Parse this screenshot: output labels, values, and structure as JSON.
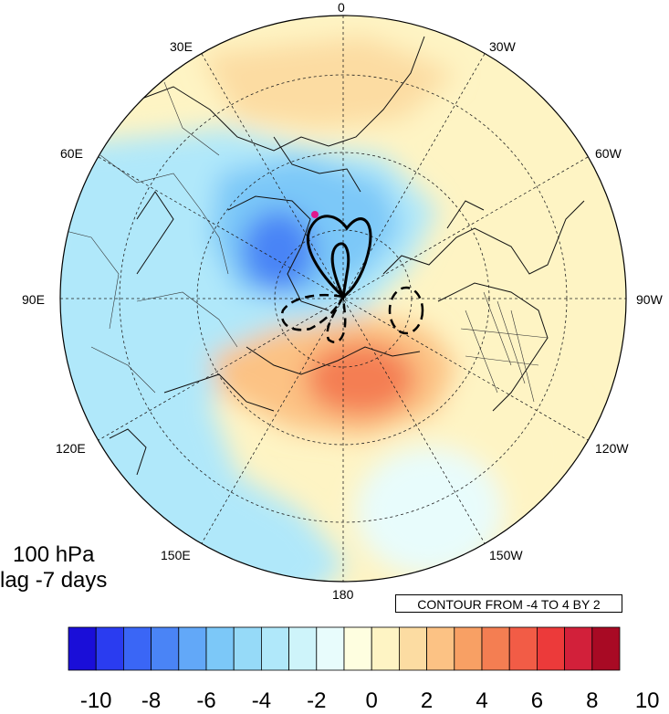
{
  "map": {
    "projection": "north-polar-stereographic",
    "longitude_labels": [
      "0",
      "30W",
      "60W",
      "90W",
      "120W",
      "150W",
      "180",
      "150E",
      "120E",
      "90E",
      "60E",
      "30E"
    ],
    "shading_field": "temperature anomaly",
    "contour_overlay": "black line contours, dashed negative",
    "marker_color": "#e0188c"
  },
  "caption": {
    "level": "100 hPa",
    "lag": "lag -7 days"
  },
  "contour_info": "CONTOUR FROM -4 TO 4 BY 2",
  "colorbar": {
    "colors": [
      "#1a0ed8",
      "#2a3cf0",
      "#3a66f6",
      "#4a84f6",
      "#62a8f8",
      "#7cc8f8",
      "#96daf8",
      "#b0e8fa",
      "#cef4fa",
      "#e8fcfc",
      "#fefee0",
      "#fef4c4",
      "#fcdca2",
      "#fcc284",
      "#f8a064",
      "#f47e52",
      "#f25c46",
      "#ec3a3a",
      "#d2203a",
      "#a80a24"
    ],
    "tick_labels": [
      "-10",
      "-8",
      "-6",
      "-4",
      "-2",
      "0",
      "2",
      "4",
      "6",
      "8",
      "10"
    ]
  }
}
